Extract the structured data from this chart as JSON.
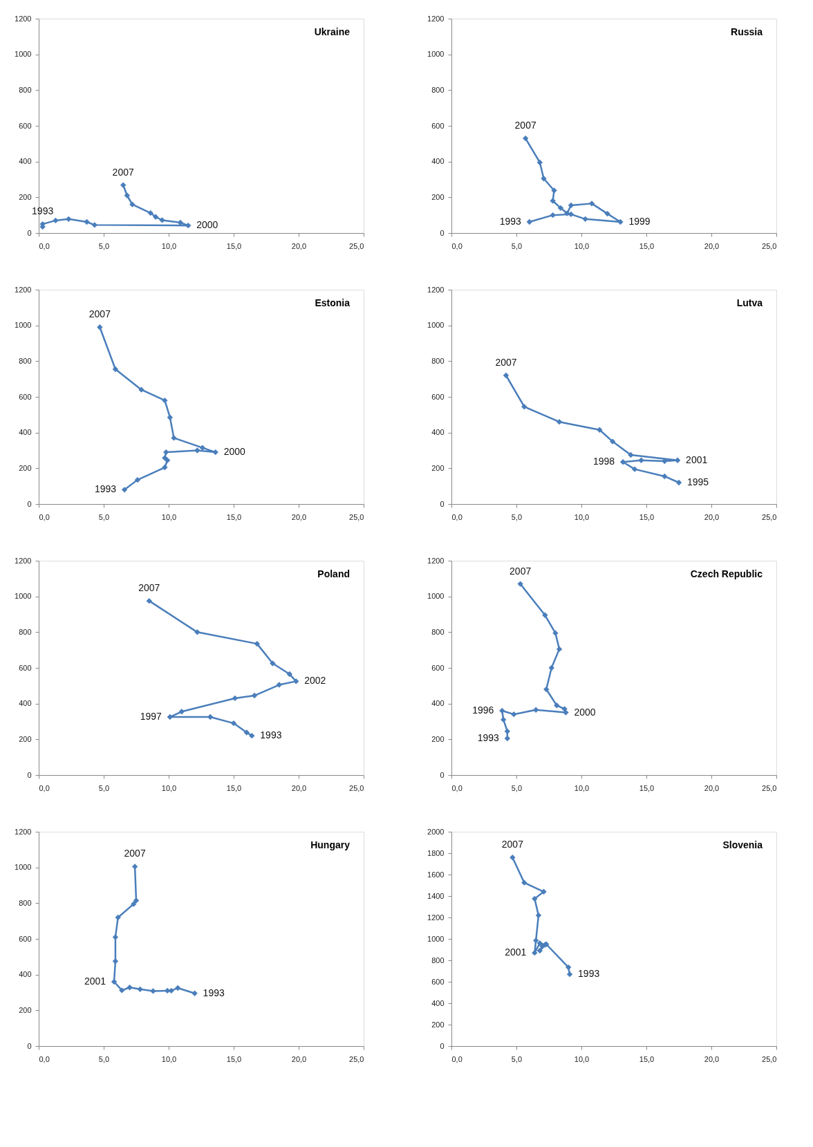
{
  "chart_data": [
    {
      "type": "line",
      "title": "Ukraine",
      "marker": "diamond",
      "grid": false,
      "xlim": [
        0,
        25
      ],
      "ylim": [
        0,
        1200
      ],
      "xticks": [
        {
          "value": 0,
          "label": "0,0"
        },
        {
          "value": 5,
          "label": "5,0"
        },
        {
          "value": 10,
          "label": "10,0"
        },
        {
          "value": 15,
          "label": "15,0"
        },
        {
          "value": 20,
          "label": "20,0"
        },
        {
          "value": 25,
          "label": "25,0"
        }
      ],
      "yticks": [
        0,
        200,
        400,
        600,
        800,
        1000,
        1200
      ],
      "series": [
        {
          "color": "#4a7ebb",
          "x": [
            0.3,
            0.3,
            1.3,
            2.3,
            3.7,
            4.3,
            11.5,
            10.9,
            9.5,
            9.0,
            8.6,
            7.2,
            6.8,
            6.5
          ],
          "values": [
            35,
            50,
            70,
            78,
            62,
            45,
            42,
            58,
            72,
            90,
            112,
            160,
            210,
            268
          ]
        }
      ],
      "annotations": [
        {
          "text": "1993",
          "x": 0.3,
          "y": 50
        },
        {
          "text": "2000",
          "x": 11.5,
          "y": 42
        },
        {
          "text": "2007",
          "x": 6.5,
          "y": 268
        }
      ]
    },
    {
      "type": "line",
      "title": "Russia",
      "marker": "diamond",
      "grid": false,
      "xlim": [
        0,
        25
      ],
      "ylim": [
        0,
        1200
      ],
      "xticks": [
        {
          "value": 0,
          "label": "0,0"
        },
        {
          "value": 5,
          "label": "5,0"
        },
        {
          "value": 10,
          "label": "10,0"
        },
        {
          "value": 15,
          "label": "15,0"
        },
        {
          "value": 20,
          "label": "20,0"
        },
        {
          "value": 25,
          "label": "25,0"
        }
      ],
      "yticks": [
        0,
        200,
        400,
        600,
        800,
        1000,
        1200
      ],
      "series": [
        {
          "color": "#4a7ebb",
          "x": [
            6.0,
            7.8,
            9.2,
            10.3,
            13.0,
            12.0,
            10.8,
            9.2,
            8.9,
            8.4,
            7.8,
            7.9,
            7.1,
            6.8,
            5.7
          ],
          "values": [
            62,
            100,
            105,
            78,
            62,
            108,
            165,
            155,
            110,
            140,
            180,
            238,
            305,
            395,
            530
          ]
        }
      ],
      "annotations": [
        {
          "text": "1993",
          "x": 6.0,
          "y": 62
        },
        {
          "text": "1999",
          "x": 13.0,
          "y": 62
        },
        {
          "text": "2007",
          "x": 5.7,
          "y": 530
        }
      ]
    },
    {
      "type": "line",
      "title": "Estonia",
      "marker": "diamond",
      "grid": false,
      "xlim": [
        0,
        25
      ],
      "ylim": [
        0,
        1200
      ],
      "xticks": [
        {
          "value": 0,
          "label": "0,0"
        },
        {
          "value": 5,
          "label": "5,0"
        },
        {
          "value": 10,
          "label": "10,0"
        },
        {
          "value": 15,
          "label": "15,0"
        },
        {
          "value": 20,
          "label": "20,0"
        },
        {
          "value": 25,
          "label": "25,0"
        }
      ],
      "yticks": [
        0,
        200,
        400,
        600,
        800,
        1000,
        1200
      ],
      "series": [
        {
          "color": "#4a7ebb",
          "x": [
            6.6,
            7.6,
            9.7,
            9.9,
            9.7,
            9.8,
            12.2,
            13.6,
            12.6,
            10.4,
            10.1,
            9.7,
            7.9,
            5.9,
            4.7
          ],
          "values": [
            80,
            135,
            205,
            245,
            258,
            290,
            300,
            290,
            315,
            370,
            485,
            580,
            640,
            755,
            990
          ]
        }
      ],
      "annotations": [
        {
          "text": "1993",
          "x": 6.6,
          "y": 80
        },
        {
          "text": "2000",
          "x": 13.6,
          "y": 290
        },
        {
          "text": "2007",
          "x": 4.7,
          "y": 990
        }
      ]
    },
    {
      "type": "line",
      "title": "Lutva",
      "marker": "diamond",
      "grid": false,
      "xlim": [
        0,
        25
      ],
      "ylim": [
        0,
        1200
      ],
      "xticks": [
        {
          "value": 0,
          "label": "0,0"
        },
        {
          "value": 5,
          "label": "5,0"
        },
        {
          "value": 10,
          "label": "10,0"
        },
        {
          "value": 15,
          "label": "15,0"
        },
        {
          "value": 20,
          "label": "20,0"
        },
        {
          "value": 25,
          "label": "25,0"
        }
      ],
      "yticks": [
        0,
        200,
        400,
        600,
        800,
        1000,
        1200
      ],
      "series": [
        {
          "color": "#4a7ebb",
          "x": [
            17.5,
            16.4,
            14.1,
            13.2,
            14.6,
            16.4,
            17.4,
            13.8,
            12.4,
            11.4,
            8.3,
            5.6,
            4.2
          ],
          "values": [
            120,
            155,
            195,
            235,
            245,
            240,
            245,
            275,
            350,
            415,
            460,
            545,
            720
          ]
        }
      ],
      "annotations": [
        {
          "text": "1995",
          "x": 17.5,
          "y": 120
        },
        {
          "text": "1998",
          "x": 13.2,
          "y": 235
        },
        {
          "text": "2001",
          "x": 17.4,
          "y": 245
        },
        {
          "text": "2007",
          "x": 4.2,
          "y": 720
        }
      ]
    },
    {
      "type": "line",
      "title": "Poland",
      "marker": "diamond",
      "grid": false,
      "xlim": [
        0,
        25
      ],
      "ylim": [
        0,
        1200
      ],
      "xticks": [
        {
          "value": 0,
          "label": "0,0"
        },
        {
          "value": 5,
          "label": "5,0"
        },
        {
          "value": 10,
          "label": "10,0"
        },
        {
          "value": 15,
          "label": "15,0"
        },
        {
          "value": 20,
          "label": "20,0"
        },
        {
          "value": 25,
          "label": "25,0"
        }
      ],
      "yticks": [
        0,
        200,
        400,
        600,
        800,
        1000,
        1200
      ],
      "series": [
        {
          "color": "#4a7ebb",
          "x": [
            16.4,
            16.0,
            15.0,
            13.2,
            10.1,
            11.0,
            15.1,
            16.6,
            18.5,
            19.8,
            19.3,
            18.0,
            16.8,
            12.2,
            8.5
          ],
          "values": [
            220,
            238,
            290,
            325,
            325,
            355,
            430,
            445,
            505,
            525,
            565,
            625,
            735,
            800,
            975
          ]
        }
      ],
      "annotations": [
        {
          "text": "1993",
          "x": 16.4,
          "y": 220
        },
        {
          "text": "1997",
          "x": 10.1,
          "y": 325
        },
        {
          "text": "2002",
          "x": 19.8,
          "y": 525
        },
        {
          "text": "2007",
          "x": 8.5,
          "y": 975
        }
      ]
    },
    {
      "type": "line",
      "title": "Czech  Republic",
      "marker": "diamond",
      "grid": false,
      "xlim": [
        0,
        25
      ],
      "ylim": [
        0,
        1200
      ],
      "xticks": [
        {
          "value": 0,
          "label": "0,0"
        },
        {
          "value": 5,
          "label": "5,0"
        },
        {
          "value": 10,
          "label": "10,0"
        },
        {
          "value": 15,
          "label": "15,0"
        },
        {
          "value": 20,
          "label": "20,0"
        },
        {
          "value": 25,
          "label": "25,0"
        }
      ],
      "yticks": [
        0,
        200,
        400,
        600,
        800,
        1000,
        1200
      ],
      "series": [
        {
          "color": "#4a7ebb",
          "x": [
            4.3,
            4.3,
            4.0,
            3.9,
            4.8,
            6.5,
            8.8,
            8.7,
            8.1,
            7.3,
            7.7,
            8.3,
            8.0,
            7.2,
            5.3
          ],
          "values": [
            205,
            245,
            310,
            360,
            340,
            365,
            350,
            370,
            390,
            480,
            600,
            705,
            795,
            895,
            1070
          ]
        }
      ],
      "annotations": [
        {
          "text": "1993",
          "x": 4.3,
          "y": 205
        },
        {
          "text": "1996",
          "x": 3.9,
          "y": 360
        },
        {
          "text": "2000",
          "x": 8.8,
          "y": 350
        },
        {
          "text": "2007",
          "x": 5.3,
          "y": 1070
        }
      ]
    },
    {
      "type": "line",
      "title": "Hungary",
      "marker": "diamond",
      "grid": false,
      "xlim": [
        0,
        25
      ],
      "ylim": [
        0,
        1200
      ],
      "xticks": [
        {
          "value": 0,
          "label": "0,0"
        },
        {
          "value": 5,
          "label": "5,0"
        },
        {
          "value": 10,
          "label": "10,0"
        },
        {
          "value": 15,
          "label": "15,0"
        },
        {
          "value": 20,
          "label": "20,0"
        },
        {
          "value": 25,
          "label": "25,0"
        }
      ],
      "yticks": [
        0,
        200,
        400,
        600,
        800,
        1000,
        1200
      ],
      "series": [
        {
          "color": "#4a7ebb",
          "x": [
            12.0,
            10.7,
            10.2,
            9.9,
            8.8,
            7.8,
            7.0,
            6.4,
            5.8,
            5.9,
            5.9,
            6.1,
            7.3,
            7.5,
            7.4
          ],
          "values": [
            295,
            325,
            310,
            310,
            308,
            318,
            328,
            312,
            360,
            475,
            610,
            720,
            795,
            815,
            1005
          ]
        }
      ],
      "annotations": [
        {
          "text": "1993",
          "x": 12.0,
          "y": 295
        },
        {
          "text": "2001",
          "x": 5.8,
          "y": 360
        },
        {
          "text": "2007",
          "x": 7.4,
          "y": 1005
        }
      ]
    },
    {
      "type": "line",
      "title": "Slovenia",
      "marker": "diamond",
      "grid": false,
      "xlim": [
        0,
        25
      ],
      "ylim": [
        0,
        2000
      ],
      "xticks": [
        {
          "value": 0,
          "label": "0,0"
        },
        {
          "value": 5,
          "label": "5,0"
        },
        {
          "value": 10,
          "label": "10,0"
        },
        {
          "value": 15,
          "label": "15,0"
        },
        {
          "value": 20,
          "label": "20,0"
        },
        {
          "value": 25,
          "label": "25,0"
        }
      ],
      "yticks": [
        0,
        200,
        400,
        600,
        800,
        1000,
        1200,
        1400,
        1600,
        1800,
        2000
      ],
      "series": [
        {
          "color": "#4a7ebb",
          "x": [
            9.1,
            9.0,
            7.3,
            7.0,
            6.8,
            7.2,
            6.8,
            6.4,
            6.5,
            6.7,
            6.4,
            7.1,
            5.6,
            4.7
          ],
          "values": [
            670,
            735,
            950,
            930,
            890,
            945,
            960,
            870,
            985,
            1220,
            1375,
            1440,
            1525,
            1760
          ]
        }
      ],
      "annotations": [
        {
          "text": "1993",
          "x": 9.1,
          "y": 670
        },
        {
          "text": "2001",
          "x": 6.4,
          "y": 870
        },
        {
          "text": "2007",
          "x": 4.7,
          "y": 1760
        }
      ]
    }
  ]
}
